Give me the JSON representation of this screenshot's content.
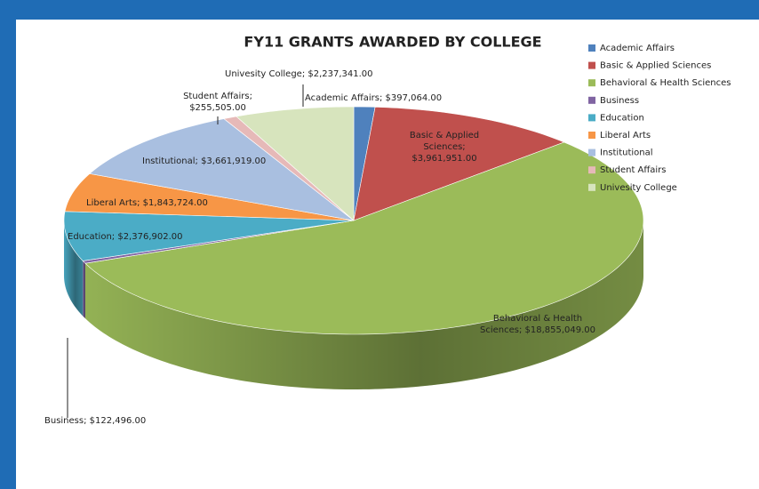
{
  "chart_data": {
    "type": "pie3d",
    "title": "FY11 GRANTS AWARDED BY COLLEGE",
    "categories": [
      "Academic Affairs",
      "Basic & Applied Sciences",
      "Behavioral & Health Sciences",
      "Business",
      "Education",
      "Liberal Arts",
      "Institutional",
      "Student Affairs",
      "Univesity College"
    ],
    "values": [
      397064,
      3961951,
      18855049,
      122496,
      2376902,
      1843724,
      3661919,
      255505,
      2237341
    ],
    "value_labels": [
      "Academic Affairs; $397,064.00",
      "Basic & Applied Sciences; $3,961,951.00",
      "Behavioral & Health Sciences; $18,855,049.00",
      "Business; $122,496.00",
      "Education; $2,376,902.00",
      "Liberal Arts; $1,843,724.00",
      "Institutional; $3,661,919.00",
      "Student Affairs; $255,505.00",
      "Univesity College; $2,237,341.00"
    ],
    "colors": [
      "#4f81bd",
      "#c0504d",
      "#9bbb59",
      "#8064a2",
      "#4bacc6",
      "#f79646",
      "#a9bfe0",
      "#e6b9b8",
      "#d7e4bd"
    ],
    "legend": "right"
  }
}
